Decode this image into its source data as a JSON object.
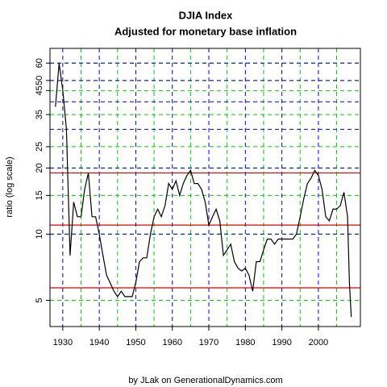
{
  "chart_data": {
    "type": "line",
    "title": "DJIA Index",
    "subtitle": "Adjusted for monetary base inflation",
    "ylabel": "ratio (log scale)",
    "caption": "by JLak on GenerationalDynamics.com",
    "log_y": true,
    "x": [
      1928,
      1929,
      1930,
      1931,
      1932,
      1933,
      1934,
      1935,
      1936,
      1937,
      1938,
      1939,
      1940,
      1941,
      1942,
      1943,
      1944,
      1945,
      1946,
      1947,
      1948,
      1949,
      1950,
      1951,
      1952,
      1953,
      1954,
      1955,
      1956,
      1957,
      1958,
      1959,
      1960,
      1961,
      1962,
      1963,
      1964,
      1965,
      1966,
      1967,
      1968,
      1969,
      1970,
      1971,
      1972,
      1973,
      1974,
      1975,
      1976,
      1977,
      1978,
      1979,
      1980,
      1981,
      1982,
      1983,
      1984,
      1985,
      1986,
      1987,
      1988,
      1989,
      1990,
      1991,
      1992,
      1993,
      1994,
      1995,
      1996,
      1997,
      1998,
      1999,
      2000,
      2001,
      2002,
      2003,
      2004,
      2005,
      2006,
      2007,
      2008,
      2008.5,
      2009
    ],
    "series": [
      {
        "name": "DJIA ratio",
        "color": "#000000",
        "values": [
          38,
          60,
          45,
          30,
          8,
          14,
          12,
          12,
          16,
          19,
          12,
          12,
          10,
          8,
          6.5,
          6,
          5.5,
          5.2,
          5.5,
          5.2,
          5.2,
          5.2,
          6,
          7.5,
          7.8,
          7.8,
          10,
          12,
          13,
          12,
          13.5,
          17,
          16,
          17.5,
          15,
          17,
          18.5,
          19.5,
          17,
          17,
          16,
          14,
          11,
          12,
          13,
          11.5,
          8,
          8.5,
          9,
          7.5,
          7,
          6.8,
          7,
          6.5,
          5.5,
          7.5,
          7.5,
          8.5,
          9.5,
          9.5,
          9,
          9.5,
          9.5,
          9.5,
          9.5,
          9.5,
          10,
          12,
          14.5,
          17,
          18,
          19.5,
          18.5,
          16,
          12,
          11.5,
          13,
          13,
          13.5,
          15.5,
          12,
          6,
          4.2
        ]
      }
    ],
    "xlim": [
      1926.5,
      2011.5
    ],
    "ylim": [
      3.8,
      70
    ],
    "xticks": [
      1930,
      1940,
      1950,
      1960,
      1970,
      1980,
      1990,
      2000
    ],
    "minor_xgrid": [
      1935,
      1945,
      1955,
      1965,
      1975,
      1985,
      1995,
      2005
    ],
    "yticks": [
      5,
      10,
      15,
      20,
      25,
      35,
      45,
      50,
      60
    ],
    "major_ygrid": [
      10,
      20,
      30,
      40,
      50,
      60
    ],
    "major_grid_color": "#0000cc",
    "minor_grid_color": "#00cc00",
    "hlines": [
      19,
      11,
      5.7
    ],
    "hline_color": "#dd0000"
  }
}
